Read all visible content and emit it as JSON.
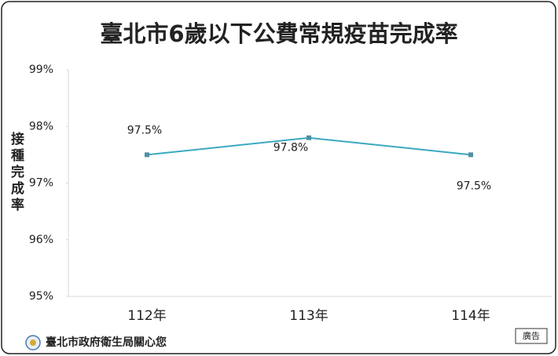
{
  "chart_data": {
    "type": "line",
    "title": "臺北市6歲以下公費常規疫苗完成率",
    "y_label": "接種完成率",
    "categories": [
      "112年",
      "113年",
      "114年"
    ],
    "series": [
      {
        "name": "完成率",
        "color": "#3aa9c0",
        "values": [
          97.5,
          97.8,
          97.5
        ],
        "value_labels": [
          "97.5%",
          "97.8%",
          "97.5%"
        ]
      }
    ],
    "ylim": [
      95,
      99
    ],
    "yticks": [
      {
        "value": 95,
        "label": "95%"
      },
      {
        "value": 96,
        "label": "96%"
      },
      {
        "value": 97,
        "label": "97%"
      },
      {
        "value": 98,
        "label": "98%"
      },
      {
        "value": 99,
        "label": "99%"
      }
    ],
    "grid": false,
    "footer": "臺北市政府衛生局關心您",
    "ad_label": "廣告"
  }
}
